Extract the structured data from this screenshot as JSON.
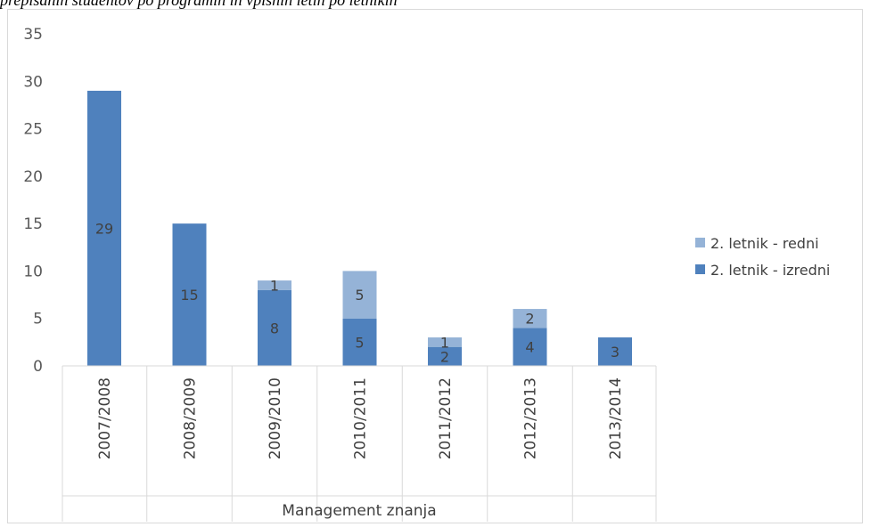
{
  "caption": "prepisanih študentov po programih in vpisnih letih po letnikih",
  "chart_data": {
    "type": "bar",
    "stacked": true,
    "categories": [
      "2007/2008",
      "2008/2009",
      "2009/2010",
      "2010/2011",
      "2011/2012",
      "2012/2013",
      "2013/2014"
    ],
    "series": [
      {
        "name": "2. letnik - izredni",
        "values": [
          29,
          15,
          8,
          5,
          2,
          4,
          3
        ],
        "color": "#4f81bd"
      },
      {
        "name": "2. letnik - redni",
        "values": [
          0,
          0,
          1,
          5,
          1,
          2,
          0
        ],
        "color": "#95b3d7"
      }
    ],
    "xlabel": "Management znanja",
    "ylabel": "",
    "ylim": [
      0,
      35
    ],
    "yticks": [
      0,
      5,
      10,
      15,
      20,
      25,
      30,
      35
    ],
    "grid": false,
    "legend": "right"
  }
}
